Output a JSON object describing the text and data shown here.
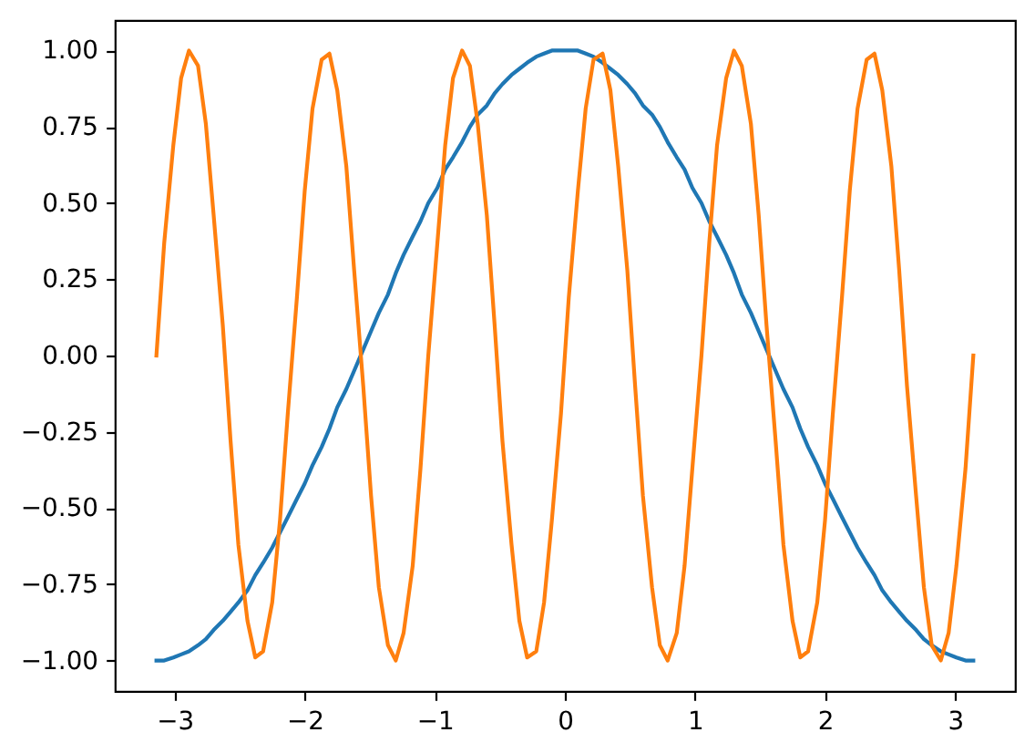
{
  "chart_data": {
    "type": "line",
    "x": [
      -3.14,
      -3.08,
      -3.01,
      -2.95,
      -2.89,
      -2.82,
      -2.76,
      -2.7,
      -2.63,
      -2.57,
      -2.51,
      -2.44,
      -2.38,
      -2.32,
      -2.25,
      -2.19,
      -2.13,
      -2.06,
      -2,
      -1.94,
      -1.87,
      -1.81,
      -1.75,
      -1.68,
      -1.62,
      -1.55,
      -1.49,
      -1.43,
      -1.36,
      -1.3,
      -1.24,
      -1.17,
      -1.11,
      -1.05,
      -0.98,
      -0.92,
      -0.86,
      -0.79,
      -0.73,
      -0.67,
      -0.6,
      -0.54,
      -0.48,
      -0.41,
      -0.35,
      -0.29,
      -0.22,
      -0.16,
      -0.1,
      -0.03,
      0.03,
      0.1,
      0.16,
      0.22,
      0.29,
      0.35,
      0.41,
      0.48,
      0.54,
      0.6,
      0.67,
      0.73,
      0.79,
      0.86,
      0.92,
      0.98,
      1.05,
      1.11,
      1.17,
      1.24,
      1.3,
      1.36,
      1.43,
      1.49,
      1.55,
      1.62,
      1.68,
      1.75,
      1.81,
      1.87,
      1.94,
      2,
      2.06,
      2.13,
      2.19,
      2.25,
      2.32,
      2.38,
      2.44,
      2.51,
      2.57,
      2.63,
      2.7,
      2.76,
      2.82,
      2.89,
      2.95,
      3.01,
      3.08,
      3.14
    ],
    "series": [
      {
        "color": "#1f77b4",
        "values": [
          -1,
          -1,
          -0.99,
          -0.98,
          -0.97,
          -0.95,
          -0.93,
          -0.9,
          -0.87,
          -0.84,
          -0.81,
          -0.77,
          -0.72,
          -0.68,
          -0.63,
          -0.58,
          -0.53,
          -0.47,
          -0.42,
          -0.36,
          -0.3,
          -0.24,
          -0.17,
          -0.11,
          -0.05,
          0.02,
          0.08,
          0.14,
          0.2,
          0.27,
          0.33,
          0.39,
          0.44,
          0.5,
          0.55,
          0.61,
          0.65,
          0.7,
          0.75,
          0.79,
          0.82,
          0.86,
          0.89,
          0.92,
          0.94,
          0.96,
          0.98,
          0.99,
          1,
          1,
          1,
          1,
          0.99,
          0.98,
          0.96,
          0.94,
          0.92,
          0.89,
          0.86,
          0.82,
          0.79,
          0.75,
          0.7,
          0.65,
          0.61,
          0.55,
          0.5,
          0.44,
          0.39,
          0.33,
          0.27,
          0.2,
          0.14,
          0.08,
          0.02,
          -0.05,
          -0.11,
          -0.17,
          -0.24,
          -0.3,
          -0.36,
          -0.42,
          -0.47,
          -0.53,
          -0.58,
          -0.63,
          -0.68,
          -0.72,
          -0.77,
          -0.81,
          -0.84,
          -0.87,
          -0.9,
          -0.93,
          -0.95,
          -0.97,
          -0.98,
          -0.99,
          -1,
          -1
        ]
      },
      {
        "color": "#ff7f0e",
        "values": [
          0,
          0.37,
          0.69,
          0.91,
          1,
          0.95,
          0.76,
          0.46,
          0.1,
          -0.28,
          -0.62,
          -0.87,
          -0.99,
          -0.97,
          -0.81,
          -0.54,
          -0.19,
          0.19,
          0.54,
          0.81,
          0.97,
          0.99,
          0.87,
          0.62,
          0.28,
          -0.1,
          -0.46,
          -0.76,
          -0.95,
          -1,
          -0.91,
          -0.69,
          -0.37,
          0,
          0.37,
          0.69,
          0.91,
          1,
          0.95,
          0.76,
          0.46,
          0.1,
          -0.28,
          -0.62,
          -0.87,
          -0.99,
          -0.97,
          -0.81,
          -0.54,
          -0.19,
          0.19,
          0.54,
          0.81,
          0.97,
          0.99,
          0.87,
          0.62,
          0.28,
          -0.1,
          -0.46,
          -0.76,
          -0.95,
          -1,
          -0.91,
          -0.69,
          -0.37,
          0,
          0.37,
          0.69,
          0.91,
          1,
          0.95,
          0.76,
          0.46,
          0.1,
          -0.28,
          -0.62,
          -0.87,
          -0.99,
          -0.97,
          -0.81,
          -0.54,
          -0.19,
          0.19,
          0.54,
          0.81,
          0.97,
          0.99,
          0.87,
          0.62,
          0.28,
          -0.1,
          -0.46,
          -0.76,
          -0.95,
          -1,
          -0.91,
          -0.69,
          -0.37,
          0
        ]
      }
    ],
    "xlim": [
      -3.46,
      3.46
    ],
    "ylim": [
      -1.1,
      1.1
    ],
    "xticks": [
      {
        "value": -3,
        "label": "−3"
      },
      {
        "value": -2,
        "label": "−2"
      },
      {
        "value": -1,
        "label": "−1"
      },
      0,
      1,
      2,
      3
    ],
    "yticks": [
      {
        "value": -1,
        "label": "−1.00"
      },
      {
        "value": -0.75,
        "label": "−0.75"
      },
      {
        "value": -0.5,
        "label": "−0.50"
      },
      {
        "value": -0.25,
        "label": "−0.25"
      },
      {
        "value": 0,
        "label": "0.00"
      },
      0.25,
      {
        "value": 0.5,
        "label": "0.50"
      },
      0.75,
      {
        "value": 1,
        "label": "1.00"
      }
    ]
  }
}
